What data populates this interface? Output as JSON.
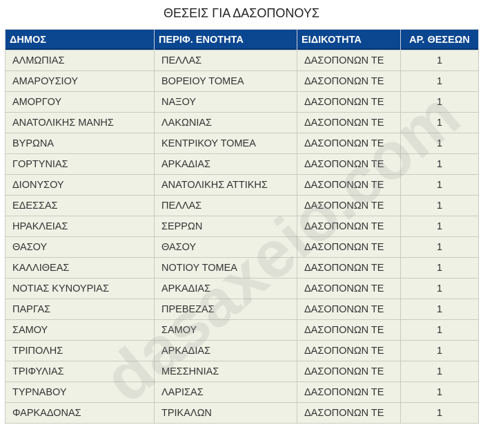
{
  "title": "ΘΕΣΕΙΣ ΓΙΑ ΔΑΣΟΠΟΝΟΥΣ",
  "watermark": "dasaxeio.com",
  "colors": {
    "header_bg": "#0b4690",
    "row_bg": "#eef1e3"
  },
  "headers": [
    "ΔΗΜΟΣ",
    "ΠΕΡΙΦ. ΕΝΟΤΗΤΑ",
    "ΕΙΔΙΚΟΤΗΤΑ",
    "ΑΡ. ΘΕΣΕΩΝ"
  ],
  "rows": [
    [
      "ΑΛΜΩΠΙΑΣ",
      "ΠΕΛΛΑΣ",
      "ΔΑΣΟΠΟΝΩΝ ΤΕ",
      "1"
    ],
    [
      "ΑΜΑΡΟΥΣΙΟΥ",
      "ΒΟΡΕΙΟΥ ΤΟΜΕΑ",
      "ΔΑΣΟΠΟΝΩΝ ΤΕ",
      "1"
    ],
    [
      "ΑΜΟΡΓΟΥ",
      "ΝΑΞΟΥ",
      "ΔΑΣΟΠΟΝΩΝ ΤΕ",
      "1"
    ],
    [
      "ΑΝΑΤΟΛΙΚΗΣ ΜΑΝΗΣ",
      "ΛΑΚΩΝΙΑΣ",
      "ΔΑΣΟΠΟΝΩΝ ΤΕ",
      "1"
    ],
    [
      "ΒΥΡΩΝΑ",
      "ΚΕΝΤΡΙΚΟΥ ΤΟΜΕΑ",
      "ΔΑΣΟΠΟΝΩΝ ΤΕ",
      "1"
    ],
    [
      "ΓΟΡΤΥΝΙΑΣ",
      "ΑΡΚΑΔΙΑΣ",
      "ΔΑΣΟΠΟΝΩΝ ΤΕ",
      "1"
    ],
    [
      "ΔΙΟΝΥΣΟΥ",
      "ΑΝΑΤΟΛΙΚΗΣ ΑΤΤΙΚΗΣ",
      "ΔΑΣΟΠΟΝΩΝ ΤΕ",
      "1"
    ],
    [
      "ΕΔΕΣΣΑΣ",
      "ΠΕΛΛΑΣ",
      "ΔΑΣΟΠΟΝΩΝ ΤΕ",
      "1"
    ],
    [
      "ΗΡΑΚΛΕΙΑΣ",
      "ΣΕΡΡΩΝ",
      "ΔΑΣΟΠΟΝΩΝ ΤΕ",
      "1"
    ],
    [
      "ΘΑΣΟΥ",
      "ΘΑΣΟΥ",
      "ΔΑΣΟΠΟΝΩΝ ΤΕ",
      "1"
    ],
    [
      "ΚΑΛΛΙΘΕΑΣ",
      "ΝΟΤΙΟΥ ΤΟΜΕΑ",
      "ΔΑΣΟΠΟΝΩΝ ΤΕ",
      "1"
    ],
    [
      "ΝΟΤΙΑΣ ΚΥΝΟΥΡΙΑΣ",
      "ΑΡΚΑΔΙΑΣ",
      "ΔΑΣΟΠΟΝΩΝ ΤΕ",
      "1"
    ],
    [
      "ΠΑΡΓΑΣ",
      "ΠΡΕΒΕΖΑΣ",
      "ΔΑΣΟΠΟΝΩΝ ΤΕ",
      "1"
    ],
    [
      "ΣΑΜΟΥ",
      "ΣΑΜΟΥ",
      "ΔΑΣΟΠΟΝΩΝ ΤΕ",
      "1"
    ],
    [
      "ΤΡΙΠΟΛΗΣ",
      "ΑΡΚΑΔΙΑΣ",
      "ΔΑΣΟΠΟΝΩΝ ΤΕ",
      "1"
    ],
    [
      "ΤΡΙΦΥΛΙΑΣ",
      "ΜΕΣΣΗΝΙΑΣ",
      "ΔΑΣΟΠΟΝΩΝ ΤΕ",
      "1"
    ],
    [
      "ΤΥΡΝΑΒΟΥ",
      "ΛΑΡΙΣΑΣ",
      "ΔΑΣΟΠΟΝΩΝ ΤΕ",
      "1"
    ],
    [
      "ΦΑΡΚΑΔΟΝΑΣ",
      "ΤΡΙΚΑΛΩΝ",
      "ΔΑΣΟΠΟΝΩΝ ΤΕ",
      "1"
    ]
  ]
}
